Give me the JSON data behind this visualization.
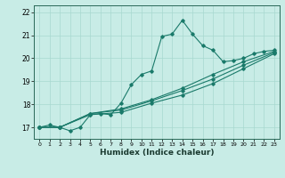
{
  "title": "",
  "xlabel": "Humidex (Indice chaleur)",
  "ylabel": "",
  "bg_color": "#c8ece6",
  "grid_color": "#a8d8d0",
  "line_color": "#1a7a6a",
  "xlim": [
    -0.5,
    23.5
  ],
  "ylim": [
    16.5,
    22.3
  ],
  "xticks": [
    0,
    1,
    2,
    3,
    4,
    5,
    6,
    7,
    8,
    9,
    10,
    11,
    12,
    13,
    14,
    15,
    16,
    17,
    18,
    19,
    20,
    21,
    22,
    23
  ],
  "yticks": [
    17,
    18,
    19,
    20,
    21,
    22
  ],
  "series": [
    [
      0,
      17.0
    ],
    [
      1,
      17.1
    ],
    [
      2,
      17.0
    ],
    [
      3,
      16.85
    ],
    [
      4,
      17.0
    ],
    [
      5,
      17.55
    ],
    [
      6,
      17.6
    ],
    [
      7,
      17.55
    ],
    [
      8,
      18.05
    ],
    [
      9,
      18.85
    ],
    [
      10,
      19.3
    ],
    [
      11,
      19.45
    ],
    [
      12,
      20.95
    ],
    [
      13,
      21.05
    ],
    [
      14,
      21.65
    ],
    [
      15,
      21.05
    ],
    [
      16,
      20.55
    ],
    [
      17,
      20.35
    ],
    [
      18,
      19.85
    ],
    [
      19,
      19.9
    ],
    [
      20,
      20.0
    ],
    [
      21,
      20.2
    ],
    [
      22,
      20.3
    ],
    [
      23,
      20.35
    ]
  ],
  "line2": [
    [
      0,
      17.0
    ],
    [
      2,
      17.0
    ],
    [
      5,
      17.55
    ],
    [
      8,
      17.65
    ],
    [
      11,
      18.05
    ],
    [
      14,
      18.4
    ],
    [
      17,
      18.9
    ],
    [
      20,
      19.55
    ],
    [
      23,
      20.2
    ]
  ],
  "line3": [
    [
      0,
      17.0
    ],
    [
      2,
      17.0
    ],
    [
      5,
      17.6
    ],
    [
      8,
      17.8
    ],
    [
      11,
      18.2
    ],
    [
      14,
      18.7
    ],
    [
      17,
      19.3
    ],
    [
      20,
      19.85
    ],
    [
      23,
      20.3
    ]
  ],
  "line4": [
    [
      0,
      17.0
    ],
    [
      2,
      17.0
    ],
    [
      5,
      17.6
    ],
    [
      8,
      17.75
    ],
    [
      11,
      18.15
    ],
    [
      14,
      18.6
    ],
    [
      17,
      19.1
    ],
    [
      20,
      19.7
    ],
    [
      23,
      20.25
    ]
  ]
}
